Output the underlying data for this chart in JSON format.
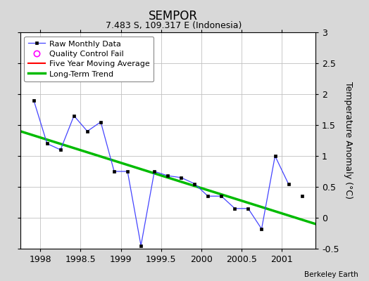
{
  "title": "SEMPOR",
  "subtitle": "7.483 S, 109.317 E (Indonesia)",
  "ylabel": "Temperature Anomaly (°C)",
  "credit": "Berkeley Earth",
  "xlim": [
    1997.75,
    2001.42
  ],
  "ylim": [
    -0.5,
    3.0
  ],
  "xticks": [
    1998,
    1998.5,
    1999,
    1999.5,
    2000,
    2000.5,
    2001
  ],
  "xtick_labels": [
    "1998",
    "1998.5",
    "1999",
    "1999.5",
    "2000",
    "2000.5",
    "2001"
  ],
  "yticks": [
    -0.5,
    0,
    0.5,
    1.0,
    1.5,
    2.0,
    2.5,
    3.0
  ],
  "ytick_labels": [
    "-0.5",
    "0",
    "0.5",
    "1",
    "1.5",
    "2",
    "2.5",
    "3"
  ],
  "raw_x": [
    1997.917,
    1998.083,
    1998.25,
    1998.417,
    1998.583,
    1998.75,
    1998.917,
    1999.083,
    1999.25,
    1999.417,
    1999.583,
    1999.75,
    1999.917,
    2000.083,
    2000.25,
    2000.417,
    2000.583,
    2000.75,
    2000.917,
    2001.083
  ],
  "raw_y": [
    1.9,
    1.2,
    1.1,
    1.65,
    1.4,
    1.55,
    0.75,
    0.75,
    -0.45,
    0.75,
    0.68,
    0.65,
    0.55,
    0.35,
    0.35,
    0.15,
    0.15,
    -0.18,
    1.0,
    0.55
  ],
  "iso_x": [
    2001.25
  ],
  "iso_y": [
    0.35
  ],
  "trend_x": [
    1997.75,
    2001.42
  ],
  "trend_y": [
    1.4,
    -0.1
  ],
  "bg_color": "#d8d8d8",
  "plot_bg": "#ffffff",
  "raw_line_color": "#4444ff",
  "raw_marker_color": "#000000",
  "trend_color": "#00bb00",
  "mavg_color": "#ff0000",
  "legend_loc": "upper left",
  "title_fontsize": 12,
  "subtitle_fontsize": 9,
  "tick_fontsize": 9,
  "ylabel_fontsize": 9
}
